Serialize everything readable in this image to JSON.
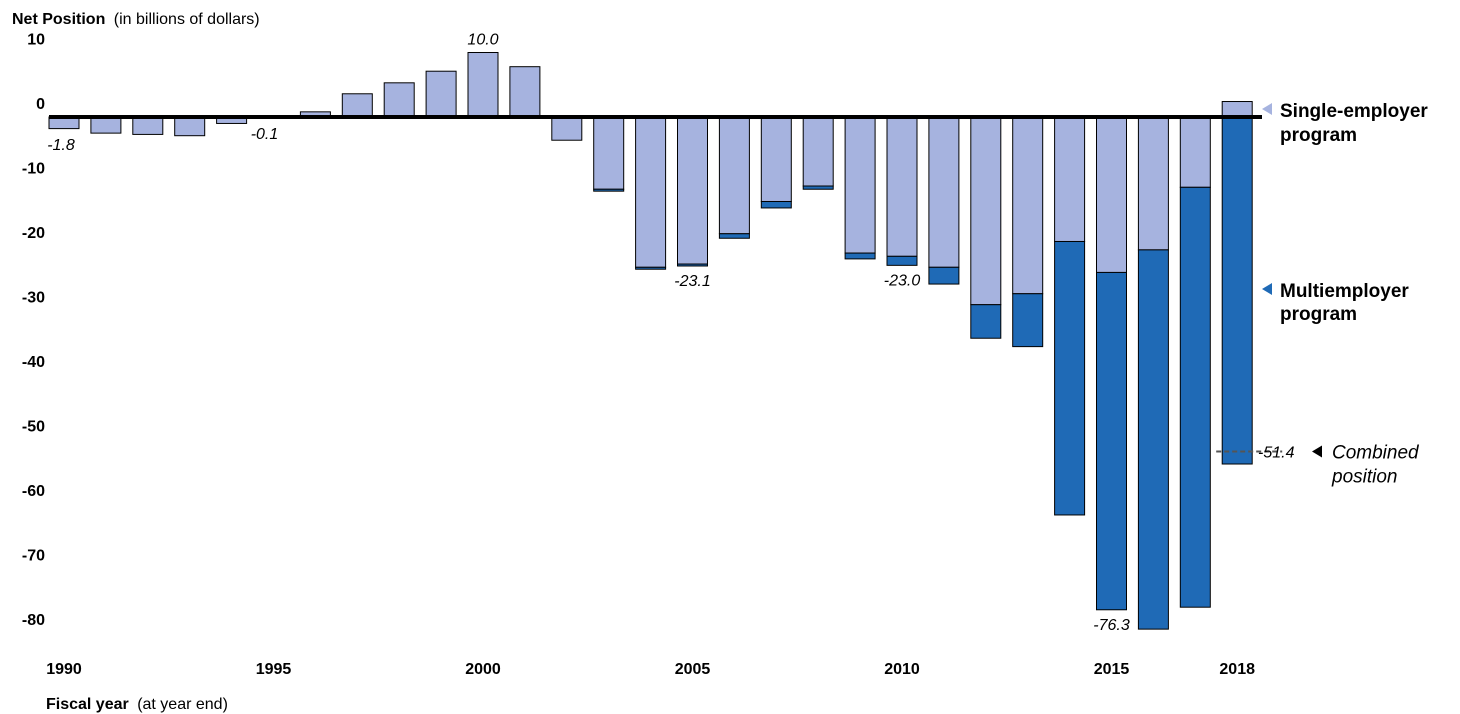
{
  "chart_data": {
    "type": "bar",
    "stacked": true,
    "title_bold": "Net Position",
    "title_rest": "(in billions of dollars)",
    "xlabel_bold": "Fiscal year",
    "xlabel_rest": "(at year end)",
    "ylim": [
      -87,
      12
    ],
    "y_ticks": [
      10,
      0,
      -10,
      -20,
      -30,
      -40,
      -50,
      -60,
      -70,
      -80
    ],
    "x_tick_labels": [
      "1990",
      "1995",
      "2000",
      "2005",
      "2010",
      "2015",
      "2018"
    ],
    "x_tick_years": [
      1990,
      1995,
      2000,
      2005,
      2010,
      2015,
      2018
    ],
    "categories": [
      "1990",
      "1991",
      "1992",
      "1993",
      "1994",
      "1995",
      "1996",
      "1997",
      "1998",
      "1999",
      "2000",
      "2001",
      "2002",
      "2003",
      "2004",
      "2005",
      "2006",
      "2007",
      "2008",
      "2009",
      "2010",
      "2011",
      "2012",
      "2013",
      "2014",
      "2015",
      "2016",
      "2017",
      "2018"
    ],
    "series": [
      {
        "name": "Single-employer program",
        "color": "#a6b3df",
        "values": [
          -1.8,
          -2.5,
          -2.7,
          -2.9,
          -1.0,
          -0.1,
          0.8,
          3.6,
          5.3,
          7.1,
          10.0,
          7.8,
          -3.6,
          -11.2,
          -23.3,
          -22.8,
          -18.1,
          -13.1,
          -10.7,
          -21.1,
          -21.6,
          -23.3,
          -29.1,
          -27.4,
          -19.3,
          -24.1,
          -20.6,
          -10.9,
          2.4
        ]
      },
      {
        "name": "Multiemployer program",
        "color": "#1f6ab6",
        "values": [
          0,
          0,
          0,
          0,
          0,
          0,
          0,
          0,
          0,
          0,
          0,
          0,
          0,
          -0.3,
          -0.3,
          -0.3,
          -0.7,
          -1.0,
          -0.5,
          -0.9,
          -1.4,
          -2.6,
          -5.2,
          -8.2,
          -42.4,
          -52.3,
          -58.8,
          -65.1,
          -53.8
        ]
      }
    ],
    "annotations": [
      {
        "year": "1990",
        "text": "-1.8"
      },
      {
        "year": "1995",
        "text": "-0.1"
      },
      {
        "year": "2000",
        "text": "10.0"
      },
      {
        "year": "2005",
        "text": "-23.1"
      },
      {
        "year": "2010",
        "text": "-23.0"
      },
      {
        "year": "2015",
        "text": "-76.3"
      }
    ],
    "combined_2018": {
      "value": -51.4,
      "text": "-51.4",
      "label_line1": "Combined",
      "label_line2": "position"
    },
    "legend": [
      {
        "line1": "Single-employer",
        "line2": "program",
        "color": "#a6b3df",
        "position": "right"
      },
      {
        "line1": "Multiemployer",
        "line2": "program",
        "color": "#1f6ab6",
        "position": "right"
      }
    ]
  }
}
